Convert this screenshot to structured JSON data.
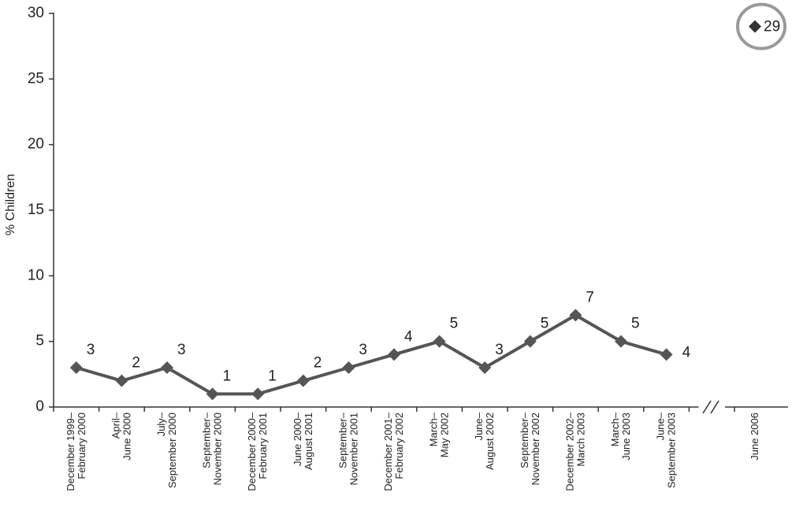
{
  "chart_data": {
    "type": "line",
    "y_label": "% Children",
    "categories": [
      "December 1999–\nFebruary 2000",
      "April–\nJune 2000",
      "July–\nSeptember 2000",
      "September–\nNovember 2000",
      "December 2000–\nFebruary 2001",
      "June 2000–\nAugust 2001",
      "September–\nNovember 2001",
      "December 2001–\nFebruary 2002",
      "March–\nMay 2002",
      "June–\nAugust 2002",
      "September–\nNovember 2002",
      "December 2002–\nMarch 2003",
      "March–\nJune 2003",
      "June–\nSeptember 2003",
      "June 2006"
    ],
    "values": [
      3,
      2,
      3,
      1,
      1,
      2,
      3,
      4,
      5,
      3,
      5,
      7,
      5,
      4,
      29
    ],
    "color": "#555555",
    "axis_break_before_index": 14,
    "highlight_index": 14,
    "ylim": [
      0,
      30
    ],
    "yticks": [
      0,
      5,
      10,
      15,
      20,
      25,
      30
    ],
    "grid": false
  }
}
